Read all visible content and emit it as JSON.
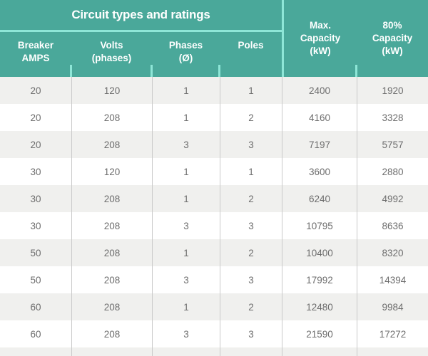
{
  "title": "Circuit types and ratings",
  "colors": {
    "teal_header": "#4aa89a",
    "mint_separator": "#8ee6d7",
    "row_alt_gray": "#f0f0ee",
    "row_white": "#ffffff",
    "column_divider": "#cacaca",
    "body_text": "#6d6d6d",
    "header_text": "#ffffff"
  },
  "header": {
    "group_title": "Circuit types and ratings",
    "cols": [
      {
        "lines": [
          "Breaker",
          "AMPS"
        ]
      },
      {
        "lines": [
          "Volts",
          "(phases)"
        ]
      },
      {
        "lines": [
          "Phases",
          "(Ø)"
        ]
      },
      {
        "lines": [
          "Poles"
        ]
      },
      {
        "lines": [
          "Max.",
          "Capacity",
          "(kW)"
        ]
      },
      {
        "lines": [
          "80%",
          "Capacity",
          "(kW)"
        ]
      }
    ]
  },
  "chart_data": {
    "type": "table",
    "title": "Circuit types and ratings",
    "columns": [
      "Breaker AMPS",
      "Volts (phases)",
      "Phases (Ø)",
      "Poles",
      "Max. Capacity (kW)",
      "80% Capacity (kW)"
    ],
    "rows": [
      [
        20,
        120,
        1,
        1,
        2400,
        1920
      ],
      [
        20,
        208,
        1,
        2,
        4160,
        3328
      ],
      [
        20,
        208,
        3,
        3,
        7197,
        5757
      ],
      [
        30,
        120,
        1,
        1,
        3600,
        2880
      ],
      [
        30,
        208,
        1,
        2,
        6240,
        4992
      ],
      [
        30,
        208,
        3,
        3,
        10795,
        8636
      ],
      [
        50,
        208,
        1,
        2,
        10400,
        8320
      ],
      [
        50,
        208,
        3,
        3,
        17992,
        14394
      ],
      [
        60,
        208,
        1,
        2,
        12480,
        9984
      ],
      [
        60,
        208,
        3,
        3,
        21590,
        17272
      ]
    ]
  }
}
